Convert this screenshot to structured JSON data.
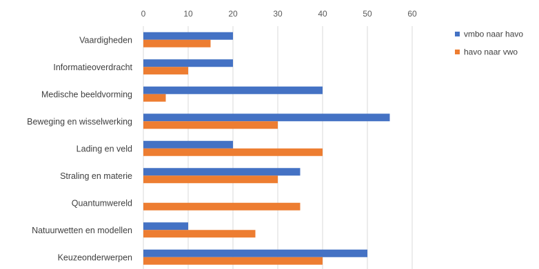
{
  "chart_data": {
    "type": "bar",
    "orientation": "horizontal",
    "categories": [
      "Vaardigheden",
      "Informatieoverdracht",
      "Medische beeldvorming",
      "Beweging en wisselwerking",
      "Lading en veld",
      "Straling en materie",
      "Quantumwereld",
      "Natuurwetten en modellen",
      "Keuzeonderwerpen"
    ],
    "series": [
      {
        "name": "vmbo naar havo",
        "color": "#4472c4",
        "values": [
          20,
          20,
          40,
          55,
          20,
          35,
          0,
          10,
          50
        ]
      },
      {
        "name": "havo naar vwo",
        "color": "#ed7d31",
        "values": [
          15,
          10,
          5,
          30,
          40,
          30,
          35,
          25,
          40
        ]
      }
    ],
    "xlim": [
      0,
      60
    ],
    "xticks": [
      "0",
      "10",
      "20",
      "30",
      "40",
      "50",
      "60"
    ],
    "grid": true,
    "legend_position": "right"
  }
}
